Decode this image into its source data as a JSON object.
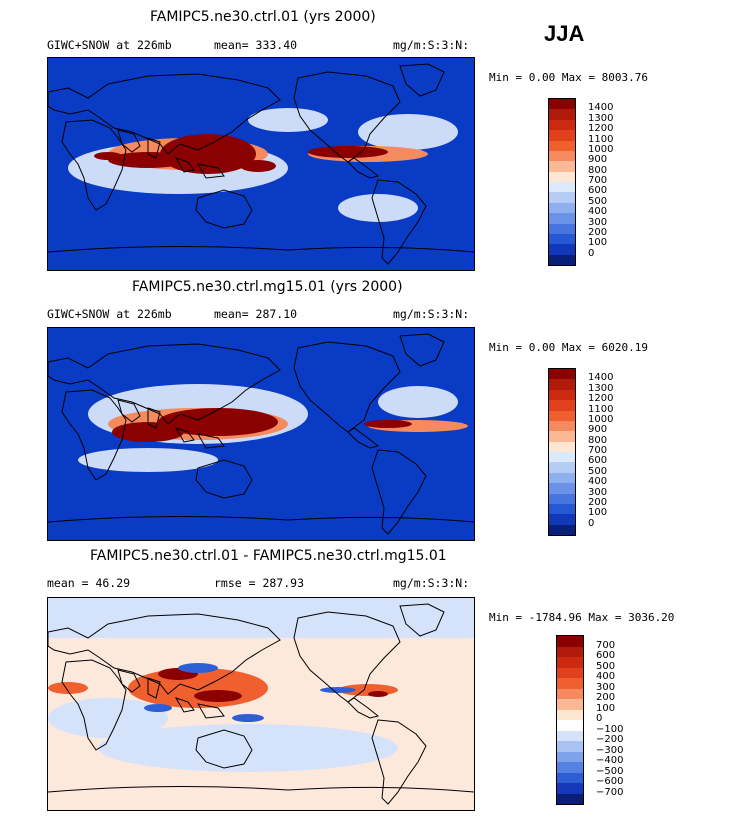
{
  "season": "JJA",
  "units": "mg/m:S:3:N:",
  "panels": [
    {
      "title": "FAMIPC5.ne30.ctrl.01 (yrs 2000)",
      "left_label": "GIWC+SNOW at 226mb",
      "stat_label": "mean= 333.40",
      "minmax": "Min =   0.00 Max = 8003.76",
      "colorbar_labels": [
        "1400",
        "1300",
        "1200",
        "1100",
        "1000",
        "900",
        "800",
        "700",
        "600",
        "500",
        "400",
        "300",
        "200",
        "100",
        "0"
      ],
      "colorbar_colors": [
        "#8b0000",
        "#b01a0a",
        "#cc2a10",
        "#e0401c",
        "#f0602e",
        "#f58a5e",
        "#fab994",
        "#fde6d2",
        "#dce9fb",
        "#b5cdf4",
        "#8fb0ee",
        "#6a92e6",
        "#4774de",
        "#2558d2",
        "#1038b8",
        "#0a2078"
      ]
    },
    {
      "title": "FAMIPC5.ne30.ctrl.mg15.01 (yrs 2000)",
      "left_label": "GIWC+SNOW at 226mb",
      "stat_label": "mean= 287.10",
      "minmax": "Min =   0.00 Max = 6020.19",
      "colorbar_labels": [
        "1400",
        "1300",
        "1200",
        "1100",
        "1000",
        "900",
        "800",
        "700",
        "600",
        "500",
        "400",
        "300",
        "200",
        "100",
        "0"
      ],
      "colorbar_colors": [
        "#8b0000",
        "#b01a0a",
        "#cc2a10",
        "#e0401c",
        "#f0602e",
        "#f58a5e",
        "#fab994",
        "#fde6d2",
        "#dce9fb",
        "#b5cdf4",
        "#8fb0ee",
        "#6a92e6",
        "#4774de",
        "#2558d2",
        "#1038b8",
        "#0a2078"
      ]
    },
    {
      "title": "FAMIPC5.ne30.ctrl.01 - FAMIPC5.ne30.ctrl.mg15.01",
      "left_label": "mean =  46.29",
      "stat_label": "rmse = 287.93",
      "minmax": "Min = -1784.96 Max = 3036.20",
      "colorbar_labels": [
        "700",
        "600",
        "500",
        "400",
        "300",
        "200",
        "100",
        "0",
        "−100",
        "−200",
        "−300",
        "−400",
        "−500",
        "−600",
        "−700"
      ],
      "colorbar_colors": [
        "#8b0000",
        "#b01a0a",
        "#cc2a10",
        "#e0401c",
        "#f0602e",
        "#f58a5e",
        "#fab994",
        "#fde6d2",
        "#ffffff",
        "#d5e3fa",
        "#a8c3f2",
        "#7fa3ea",
        "#5582e0",
        "#2d5ed4",
        "#1438b8",
        "#0a1e78"
      ]
    }
  ]
}
